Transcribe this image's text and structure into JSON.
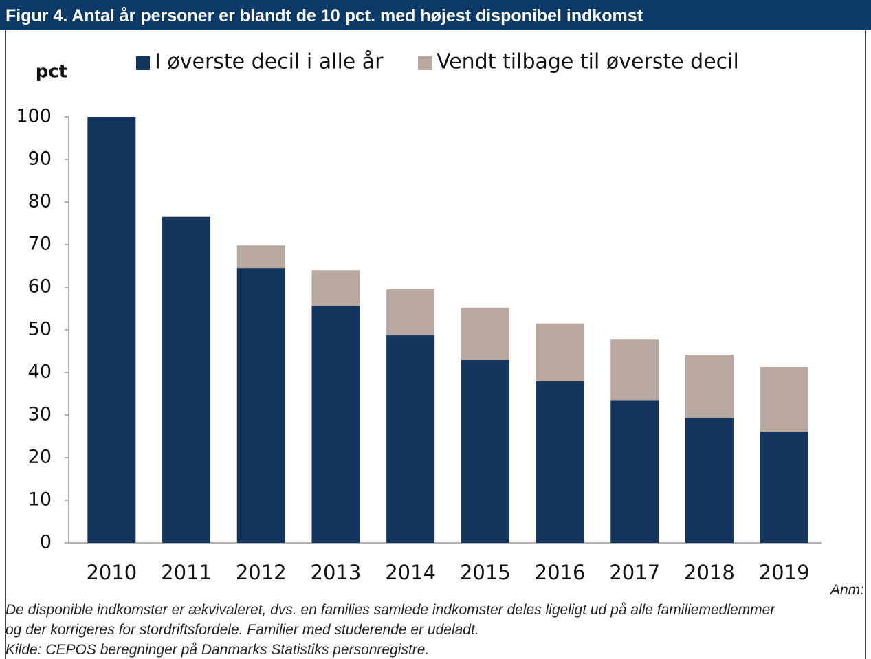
{
  "chart_data": {
    "type": "stacked_bar",
    "title": "Figur 4. Antal år personer er blandt de 10 pct. med højest disponibel indkomst",
    "y_label": "pct",
    "categories": [
      "2010",
      "2011",
      "2012",
      "2013",
      "2014",
      "2015",
      "2016",
      "2017",
      "2018",
      "2019"
    ],
    "series": [
      {
        "name": "I øverste decil i alle år",
        "color": "#14365e",
        "values": [
          100,
          76.5,
          64.5,
          55.6,
          48.7,
          42.9,
          37.9,
          33.5,
          29.4,
          26.1
        ]
      },
      {
        "name": "Vendt tilbage til øverste decil",
        "color": "#b8a89f",
        "values": [
          0,
          0,
          5.3,
          8.4,
          10.8,
          12.3,
          13.6,
          14.2,
          14.8,
          15.2
        ]
      }
    ],
    "ylim": [
      0,
      100
    ],
    "yticks": [
      0,
      10,
      20,
      30,
      40,
      50,
      60,
      70,
      80,
      90,
      100
    ],
    "grid": false,
    "legend": "top"
  },
  "footer": {
    "anm": "Anm:",
    "lines": [
      "De disponible indkomster er ækvivaleret, dvs. en families samlede indkomster deles ligeligt ud på alle familiemedlemmer",
      "og der korrigeres for stordriftsfordele. Familier med studerende er udeladt."
    ],
    "source": "Kilde: CEPOS beregninger på Danmarks Statistiks personregistre."
  }
}
